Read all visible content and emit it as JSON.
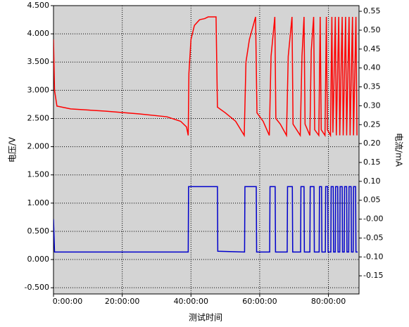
{
  "chart_data": {
    "type": "line",
    "xlabel": "测试时间",
    "ylabel": "电压/V",
    "y2label": "电流/mA",
    "xlim": [
      0,
      88.9
    ],
    "xticks": [
      {
        "value": 0,
        "label": "0:00:00"
      },
      {
        "value": 20,
        "label": "20:00:00"
      },
      {
        "value": 40,
        "label": "40:00:00"
      },
      {
        "value": 60,
        "label": "60:00:00"
      },
      {
        "value": 80,
        "label": "80:00:00"
      }
    ],
    "ylim": [
      -0.61,
      4.5
    ],
    "yticks": [
      {
        "value": 4.5,
        "label": "4.500"
      },
      {
        "value": 4,
        "label": "4.000"
      },
      {
        "value": 3.5,
        "label": "3.500"
      },
      {
        "value": 3,
        "label": "3.000"
      },
      {
        "value": 2.5,
        "label": "2.500"
      },
      {
        "value": 2,
        "label": "2.000"
      },
      {
        "value": 1.5,
        "label": "1.500"
      },
      {
        "value": 1,
        "label": "1.000"
      },
      {
        "value": 0.5,
        "label": "0.500"
      },
      {
        "value": 0,
        "label": "0.000"
      },
      {
        "value": -0.5,
        "label": "-0.500"
      }
    ],
    "y2lim": [
      -0.198,
      0.565
    ],
    "y2ticks": [
      {
        "value": 0.55,
        "label": "0.55"
      },
      {
        "value": 0.5,
        "label": "0.50"
      },
      {
        "value": 0.45,
        "label": "0.45"
      },
      {
        "value": 0.4,
        "label": "0.40"
      },
      {
        "value": 0.35,
        "label": "0.35"
      },
      {
        "value": 0.3,
        "label": "0.30"
      },
      {
        "value": 0.25,
        "label": "0.25"
      },
      {
        "value": 0.2,
        "label": "0.20"
      },
      {
        "value": 0.15,
        "label": "0.15"
      },
      {
        "value": 0.1,
        "label": "0.10"
      },
      {
        "value": 0.05,
        "label": "0.05"
      },
      {
        "value": 0,
        "label": "-0.00"
      },
      {
        "value": -0.05,
        "label": "-0.05"
      },
      {
        "value": -0.1,
        "label": "-0.10"
      },
      {
        "value": -0.15,
        "label": "-0.15"
      }
    ],
    "grid": true,
    "series": [
      {
        "color": "#ff0000",
        "axis": "y",
        "x": [
          0,
          0.3,
          1,
          5,
          15,
          25,
          33,
          37,
          38.7,
          39.2,
          39.4,
          40,
          41,
          42.5,
          44,
          45,
          47.3,
          47.7,
          50,
          53,
          55.5,
          56,
          57,
          58.8,
          59.2,
          61,
          62.8,
          63.3,
          64.4,
          64.7,
          66,
          67.8,
          68.3,
          69.4,
          69.7,
          71.8,
          72.3,
          72.9,
          73.2,
          74.6,
          75,
          75.7,
          76,
          77.2,
          77.6,
          77.9,
          79,
          79.4,
          79.7,
          80.6,
          81,
          81.3,
          82,
          82.3,
          83,
          83.3,
          84,
          84.3,
          85,
          85.3,
          86,
          86.3,
          87,
          87.3,
          88,
          88.3
        ],
        "values": [
          3.9,
          3.0,
          2.72,
          2.67,
          2.63,
          2.58,
          2.53,
          2.45,
          2.35,
          2.2,
          3.3,
          3.9,
          4.15,
          4.25,
          4.27,
          4.3,
          4.3,
          2.7,
          2.6,
          2.45,
          2.2,
          3.5,
          3.9,
          4.3,
          2.6,
          2.45,
          2.2,
          3.6,
          4.3,
          2.5,
          2.4,
          2.2,
          3.6,
          4.3,
          2.4,
          2.2,
          3.6,
          4.3,
          2.4,
          2.2,
          3.7,
          4.3,
          2.3,
          2.2,
          4.3,
          2.3,
          2.2,
          4.3,
          2.3,
          2.2,
          4.3,
          2.25,
          4.3,
          2.2,
          4.3,
          2.2,
          4.3,
          2.2,
          4.3,
          2.2,
          4.3,
          2.2,
          4.3,
          2.2,
          4.3,
          2.2
        ]
      },
      {
        "color": "#0000cc",
        "axis": "y2",
        "x": [
          0,
          0.3,
          10,
          39.2,
          39.3,
          47.7,
          47.8,
          55.6,
          55.7,
          59.0,
          59.1,
          62.9,
          63.0,
          64.5,
          64.6,
          68.0,
          68.1,
          69.5,
          69.6,
          71.9,
          72.0,
          72.9,
          73.0,
          74.6,
          74.7,
          75.8,
          75.9,
          77.3,
          77.4,
          78.0,
          78.1,
          79.1,
          79.2,
          79.8,
          79.9,
          80.7,
          80.8,
          81.4,
          81.5,
          82.0,
          82.1,
          82.7,
          82.8,
          83.3,
          83.4,
          84.0,
          84.1,
          84.6,
          84.7,
          85.3,
          85.4,
          85.9,
          86.0,
          86.6,
          86.7,
          87.2,
          87.3,
          87.9,
          88.0,
          88.5
        ],
        "values": [
          0.0,
          -0.087,
          -0.087,
          -0.087,
          0.086,
          0.086,
          -0.085,
          -0.087,
          0.086,
          0.086,
          -0.087,
          -0.087,
          0.086,
          0.086,
          -0.087,
          -0.087,
          0.086,
          0.086,
          -0.087,
          -0.087,
          0.086,
          0.086,
          -0.087,
          -0.087,
          0.086,
          0.086,
          -0.087,
          -0.087,
          0.086,
          0.086,
          -0.087,
          -0.087,
          0.086,
          0.086,
          -0.087,
          -0.087,
          0.086,
          0.086,
          -0.087,
          -0.087,
          0.086,
          0.086,
          -0.087,
          -0.087,
          0.086,
          0.086,
          -0.087,
          -0.087,
          0.086,
          0.086,
          -0.087,
          -0.087,
          0.086,
          0.086,
          -0.087,
          -0.087,
          0.086,
          0.086,
          -0.087,
          -0.087
        ]
      }
    ]
  }
}
